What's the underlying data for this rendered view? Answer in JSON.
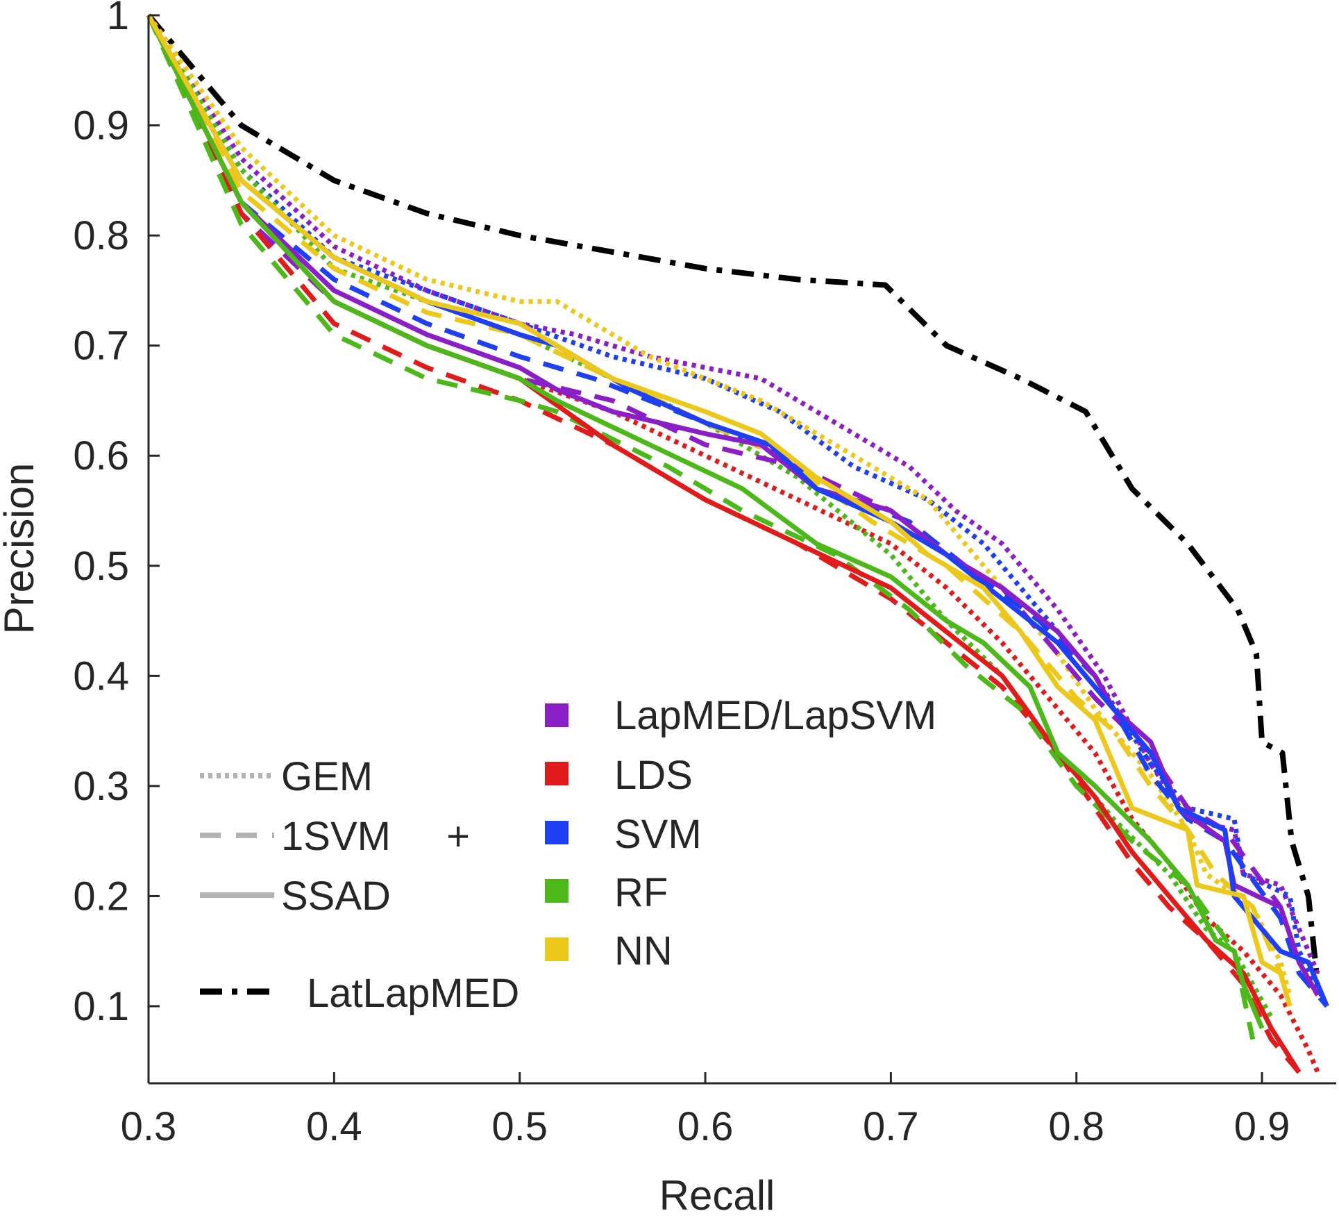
{
  "chart_data": {
    "type": "line",
    "title": "",
    "xlabel": "Recall",
    "ylabel": "Precision",
    "xlim": [
      0.3,
      0.94
    ],
    "ylim": [
      0.03,
      1.0
    ],
    "xticks": [
      "0.3",
      "0.4",
      "0.5",
      "0.6",
      "0.7",
      "0.8",
      "0.9"
    ],
    "xtick_values": [
      0.3,
      0.4,
      0.5,
      0.6,
      0.7,
      0.8,
      0.9
    ],
    "yticks": [
      "0.1",
      "0.2",
      "0.3",
      "0.4",
      "0.5",
      "0.6",
      "0.7",
      "0.8",
      "0.9",
      "1"
    ],
    "ytick_values": [
      0.1,
      0.2,
      0.3,
      0.4,
      0.5,
      0.6,
      0.7,
      0.8,
      0.9,
      1.0
    ],
    "legend_styles": [
      {
        "label": "GEM",
        "dash": "dotted"
      },
      {
        "label": "1SVM",
        "dash": "dashed"
      },
      {
        "label": "SSAD",
        "dash": "solid"
      }
    ],
    "legend_plus": "+",
    "legend_colors": [
      {
        "label": "LapMED/LapSVM",
        "color": "#8a1fc7"
      },
      {
        "label": "LDS",
        "color": "#e01b1b"
      },
      {
        "label": "SVM",
        "color": "#1f3ff2"
      },
      {
        "label": "RF",
        "color": "#4cb81a"
      },
      {
        "label": "NN",
        "color": "#ecc81c"
      }
    ],
    "legend_latlapmed": {
      "label": "LatLapMED",
      "color": "#000000"
    },
    "series": [
      {
        "name": "LatLapMED",
        "color": "#000000",
        "dash": "dashdot",
        "x": [
          0.3,
          0.35,
          0.4,
          0.45,
          0.5,
          0.55,
          0.6,
          0.65,
          0.697,
          0.73,
          0.77,
          0.805,
          0.83,
          0.86,
          0.887,
          0.897,
          0.9,
          0.911,
          0.916,
          0.925,
          0.93
        ],
        "y": [
          1.0,
          0.9,
          0.85,
          0.82,
          0.8,
          0.785,
          0.77,
          0.76,
          0.755,
          0.7,
          0.67,
          0.64,
          0.57,
          0.52,
          0.46,
          0.42,
          0.34,
          0.33,
          0.25,
          0.2,
          0.12
        ]
      },
      {
        "name": "GEM + LapMED/LapSVM",
        "color": "#8a1fc7",
        "dash": "dotted",
        "x": [
          0.3,
          0.35,
          0.4,
          0.45,
          0.5,
          0.53,
          0.57,
          0.63,
          0.68,
          0.71,
          0.735,
          0.76,
          0.79,
          0.815,
          0.84,
          0.86,
          0.885,
          0.89,
          0.91,
          0.93
        ],
        "y": [
          1.0,
          0.87,
          0.79,
          0.75,
          0.72,
          0.71,
          0.69,
          0.67,
          0.62,
          0.59,
          0.55,
          0.52,
          0.46,
          0.4,
          0.32,
          0.27,
          0.26,
          0.22,
          0.21,
          0.13
        ]
      },
      {
        "name": "GEM + LDS",
        "color": "#e01b1b",
        "dash": "dotted",
        "x": [
          0.3,
          0.35,
          0.4,
          0.45,
          0.5,
          0.55,
          0.6,
          0.65,
          0.7,
          0.73,
          0.76,
          0.79,
          0.81,
          0.83,
          0.85,
          0.87,
          0.89,
          0.91,
          0.925,
          0.93
        ],
        "y": [
          1.0,
          0.83,
          0.74,
          0.7,
          0.67,
          0.64,
          0.6,
          0.56,
          0.52,
          0.48,
          0.43,
          0.37,
          0.33,
          0.27,
          0.23,
          0.18,
          0.15,
          0.11,
          0.06,
          0.04
        ]
      },
      {
        "name": "GEM + SVM",
        "color": "#1f3ff2",
        "dash": "dotted",
        "x": [
          0.3,
          0.35,
          0.4,
          0.45,
          0.5,
          0.55,
          0.6,
          0.64,
          0.68,
          0.72,
          0.75,
          0.79,
          0.81,
          0.84,
          0.86,
          0.885,
          0.89,
          0.915,
          0.92,
          0.935
        ],
        "y": [
          1.0,
          0.86,
          0.78,
          0.75,
          0.72,
          0.69,
          0.67,
          0.64,
          0.59,
          0.56,
          0.52,
          0.44,
          0.4,
          0.32,
          0.28,
          0.27,
          0.22,
          0.2,
          0.15,
          0.1
        ]
      },
      {
        "name": "GEM + RF",
        "color": "#4cb81a",
        "dash": "dotted",
        "x": [
          0.3,
          0.35,
          0.4,
          0.45,
          0.5,
          0.55,
          0.6,
          0.65,
          0.7,
          0.73,
          0.76,
          0.79,
          0.82,
          0.85,
          0.87,
          0.885,
          0.895,
          0.905
        ],
        "y": [
          1.0,
          0.86,
          0.77,
          0.74,
          0.71,
          0.67,
          0.63,
          0.58,
          0.51,
          0.45,
          0.4,
          0.33,
          0.27,
          0.22,
          0.17,
          0.15,
          0.12,
          0.09
        ]
      },
      {
        "name": "GEM + NN",
        "color": "#ecc81c",
        "dash": "dotted",
        "x": [
          0.3,
          0.35,
          0.4,
          0.45,
          0.5,
          0.52,
          0.57,
          0.63,
          0.68,
          0.72,
          0.76,
          0.79,
          0.81,
          0.84,
          0.86,
          0.87,
          0.895,
          0.91,
          0.915
        ],
        "y": [
          1.0,
          0.88,
          0.8,
          0.76,
          0.74,
          0.74,
          0.69,
          0.65,
          0.6,
          0.56,
          0.48,
          0.42,
          0.37,
          0.31,
          0.26,
          0.22,
          0.19,
          0.14,
          0.11
        ]
      },
      {
        "name": "1SVM + LapMED/LapSVM",
        "color": "#8a1fc7",
        "dash": "dashed",
        "x": [
          0.3,
          0.35,
          0.4,
          0.45,
          0.5,
          0.55,
          0.6,
          0.65,
          0.7,
          0.73,
          0.76,
          0.79,
          0.81,
          0.84,
          0.86,
          0.88,
          0.91
        ],
        "y": [
          1.0,
          0.82,
          0.74,
          0.7,
          0.67,
          0.65,
          0.61,
          0.59,
          0.55,
          0.51,
          0.48,
          0.42,
          0.38,
          0.33,
          0.28,
          0.26,
          0.19
        ]
      },
      {
        "name": "1SVM + LDS",
        "color": "#e01b1b",
        "dash": "dashed",
        "x": [
          0.3,
          0.35,
          0.4,
          0.45,
          0.5,
          0.55,
          0.6,
          0.65,
          0.7,
          0.73,
          0.76,
          0.79,
          0.81,
          0.83,
          0.85,
          0.87,
          0.89,
          0.905,
          0.92
        ],
        "y": [
          1.0,
          0.82,
          0.72,
          0.68,
          0.65,
          0.61,
          0.56,
          0.52,
          0.47,
          0.43,
          0.39,
          0.33,
          0.28,
          0.23,
          0.19,
          0.16,
          0.12,
          0.07,
          0.04
        ]
      },
      {
        "name": "1SVM + SVM",
        "color": "#1f3ff2",
        "dash": "dashed",
        "x": [
          0.3,
          0.35,
          0.4,
          0.45,
          0.5,
          0.54,
          0.6,
          0.64,
          0.68,
          0.71,
          0.74,
          0.78,
          0.81,
          0.84,
          0.86,
          0.88,
          0.91,
          0.92,
          0.935
        ],
        "y": [
          1.0,
          0.83,
          0.76,
          0.72,
          0.69,
          0.67,
          0.63,
          0.6,
          0.56,
          0.54,
          0.5,
          0.45,
          0.4,
          0.31,
          0.27,
          0.25,
          0.18,
          0.13,
          0.1
        ]
      },
      {
        "name": "1SVM + RF",
        "color": "#4cb81a",
        "dash": "dashed",
        "x": [
          0.3,
          0.35,
          0.4,
          0.45,
          0.5,
          0.52,
          0.58,
          0.62,
          0.67,
          0.71,
          0.74,
          0.77,
          0.8,
          0.83,
          0.86,
          0.885,
          0.895
        ],
        "y": [
          1.0,
          0.81,
          0.71,
          0.67,
          0.65,
          0.64,
          0.59,
          0.55,
          0.51,
          0.46,
          0.41,
          0.37,
          0.3,
          0.25,
          0.21,
          0.15,
          0.07
        ]
      },
      {
        "name": "1SVM + NN",
        "color": "#ecc81c",
        "dash": "dashed",
        "x": [
          0.3,
          0.35,
          0.4,
          0.45,
          0.5,
          0.55,
          0.6,
          0.64,
          0.69,
          0.73,
          0.77,
          0.8,
          0.82,
          0.84,
          0.86,
          0.875,
          0.895,
          0.91,
          0.915
        ],
        "y": [
          1.0,
          0.84,
          0.77,
          0.73,
          0.71,
          0.67,
          0.63,
          0.6,
          0.54,
          0.5,
          0.44,
          0.38,
          0.35,
          0.3,
          0.26,
          0.22,
          0.19,
          0.13,
          0.1
        ]
      },
      {
        "name": "SSAD + LapMED/LapSVM",
        "color": "#8a1fc7",
        "dash": "solid",
        "x": [
          0.3,
          0.35,
          0.4,
          0.45,
          0.5,
          0.52,
          0.55,
          0.6,
          0.63,
          0.66,
          0.7,
          0.73,
          0.76,
          0.79,
          0.81,
          0.82,
          0.84,
          0.855,
          0.88,
          0.885,
          0.91,
          0.92,
          0.93
        ],
        "y": [
          1.0,
          0.83,
          0.75,
          0.71,
          0.68,
          0.66,
          0.64,
          0.62,
          0.61,
          0.57,
          0.55,
          0.51,
          0.48,
          0.44,
          0.4,
          0.37,
          0.34,
          0.28,
          0.25,
          0.21,
          0.19,
          0.14,
          0.11
        ]
      },
      {
        "name": "SSAD + LDS",
        "color": "#e01b1b",
        "dash": "solid",
        "x": [
          0.3,
          0.35,
          0.4,
          0.45,
          0.5,
          0.55,
          0.6,
          0.65,
          0.7,
          0.73,
          0.76,
          0.79,
          0.81,
          0.83,
          0.85,
          0.87,
          0.89,
          0.905,
          0.92
        ],
        "y": [
          1.0,
          0.83,
          0.74,
          0.7,
          0.67,
          0.61,
          0.56,
          0.52,
          0.48,
          0.44,
          0.4,
          0.33,
          0.29,
          0.24,
          0.2,
          0.16,
          0.13,
          0.08,
          0.04
        ]
      },
      {
        "name": "SSAD + SVM",
        "color": "#1f3ff2",
        "dash": "solid",
        "x": [
          0.3,
          0.35,
          0.4,
          0.45,
          0.5,
          0.52,
          0.56,
          0.6,
          0.635,
          0.66,
          0.7,
          0.73,
          0.76,
          0.79,
          0.81,
          0.83,
          0.84,
          0.855,
          0.88,
          0.885,
          0.91,
          0.925,
          0.935
        ],
        "y": [
          1.0,
          0.85,
          0.78,
          0.74,
          0.71,
          0.7,
          0.66,
          0.63,
          0.61,
          0.57,
          0.54,
          0.51,
          0.47,
          0.43,
          0.39,
          0.35,
          0.33,
          0.28,
          0.26,
          0.2,
          0.15,
          0.14,
          0.1
        ]
      },
      {
        "name": "SSAD + RF",
        "color": "#4cb81a",
        "dash": "solid",
        "x": [
          0.3,
          0.35,
          0.4,
          0.45,
          0.5,
          0.52,
          0.57,
          0.62,
          0.66,
          0.7,
          0.73,
          0.75,
          0.775,
          0.79,
          0.81,
          0.84,
          0.86,
          0.875,
          0.885,
          0.89,
          0.9
        ],
        "y": [
          1.0,
          0.83,
          0.74,
          0.7,
          0.67,
          0.65,
          0.61,
          0.57,
          0.52,
          0.49,
          0.45,
          0.43,
          0.39,
          0.33,
          0.3,
          0.25,
          0.21,
          0.16,
          0.15,
          0.12,
          0.08
        ]
      },
      {
        "name": "SSAD + NN",
        "color": "#ecc81c",
        "dash": "solid",
        "x": [
          0.3,
          0.35,
          0.4,
          0.45,
          0.5,
          0.51,
          0.55,
          0.6,
          0.63,
          0.66,
          0.7,
          0.72,
          0.75,
          0.77,
          0.79,
          0.81,
          0.83,
          0.86,
          0.865,
          0.89,
          0.9,
          0.91,
          0.915
        ],
        "y": [
          1.0,
          0.85,
          0.78,
          0.74,
          0.72,
          0.71,
          0.67,
          0.64,
          0.62,
          0.58,
          0.54,
          0.51,
          0.48,
          0.44,
          0.39,
          0.36,
          0.28,
          0.26,
          0.21,
          0.2,
          0.14,
          0.13,
          0.1
        ]
      }
    ]
  }
}
